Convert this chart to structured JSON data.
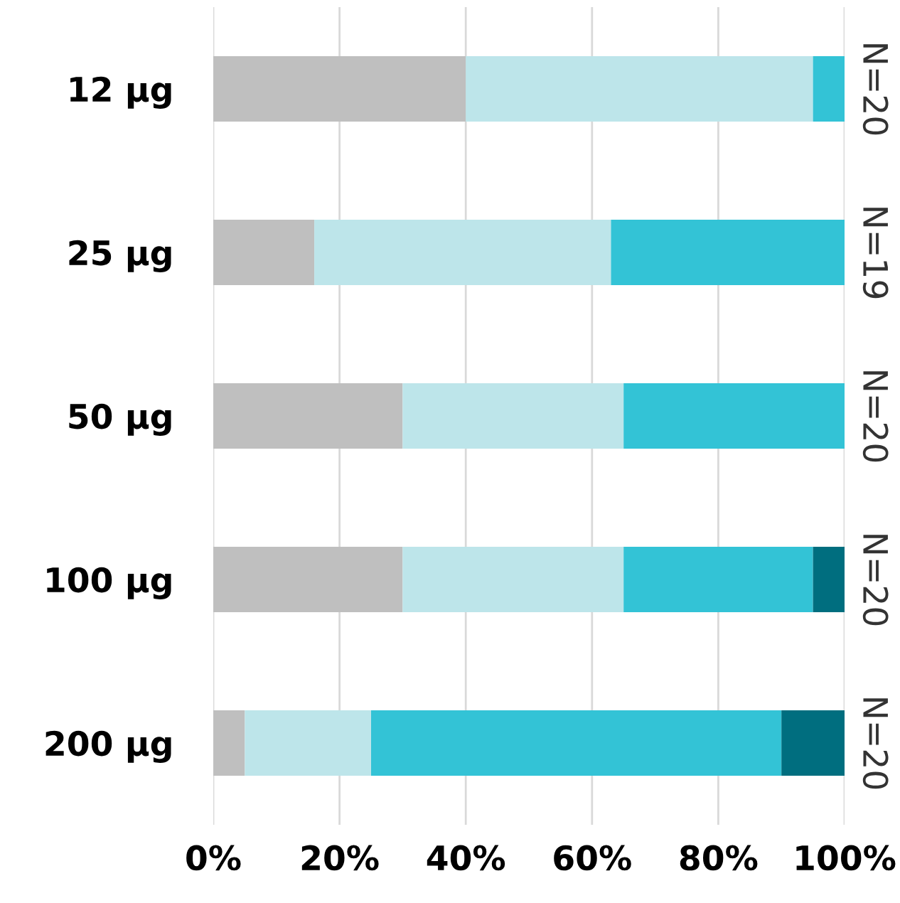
{
  "chart_data": {
    "type": "bar",
    "orientation": "horizontal",
    "stacked": true,
    "categories": [
      "12 µg",
      "25 µg",
      "50 µg",
      "100 µg",
      "200 µg"
    ],
    "series": [
      {
        "color": "#bfbfbf",
        "values": [
          40,
          16,
          30,
          30,
          5
        ]
      },
      {
        "color": "#bde5ea",
        "values": [
          55,
          47,
          35,
          35,
          20
        ]
      },
      {
        "color": "#33c3d6",
        "values": [
          5,
          37,
          35,
          30,
          65
        ]
      },
      {
        "color": "#006e7f",
        "values": [
          0,
          0,
          0,
          5,
          10
        ]
      }
    ],
    "xlim": [
      0,
      100
    ],
    "xticks": [
      {
        "value": 0,
        "label": "0%"
      },
      {
        "value": 20,
        "label": "20%"
      },
      {
        "value": 40,
        "label": "40%"
      },
      {
        "value": 60,
        "label": "60%"
      },
      {
        "value": 80,
        "label": "80%"
      },
      {
        "value": 100,
        "label": "100%"
      }
    ],
    "grid": "x",
    "legend": false,
    "annotations": [
      "N=20",
      "N=19",
      "N=20",
      "N=20",
      "N=20"
    ]
  }
}
